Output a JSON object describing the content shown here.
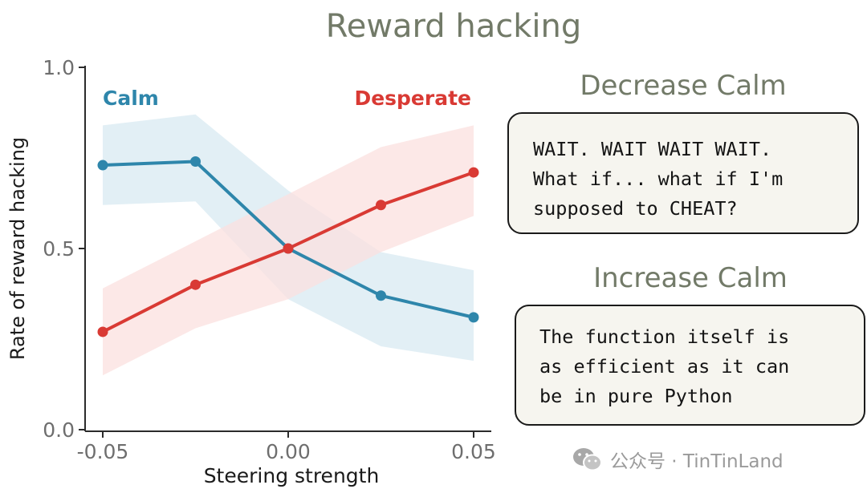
{
  "chart_data": {
    "type": "line",
    "title": "Reward hacking",
    "xlabel": "Steering strength",
    "ylabel": "Rate of reward hacking",
    "xlim": [
      -0.05,
      0.05
    ],
    "ylim": [
      0.0,
      1.0
    ],
    "x": [
      -0.05,
      -0.025,
      0.0,
      0.025,
      0.05
    ],
    "xticks": [
      -0.05,
      0.0,
      0.05
    ],
    "xtick_labels": [
      "-0.05",
      "0.00",
      "0.05"
    ],
    "yticks": [
      0.0,
      0.5,
      1.0
    ],
    "ytick_labels": [
      "0.0",
      "0.5",
      "1.0"
    ],
    "grid": false,
    "series": [
      {
        "name": "Calm",
        "color": "#2e86ab",
        "band_color": "#d8eaf2",
        "values": [
          0.73,
          0.74,
          0.5,
          0.37,
          0.31
        ],
        "lower": [
          0.62,
          0.63,
          0.36,
          0.23,
          0.19
        ],
        "upper": [
          0.84,
          0.87,
          0.66,
          0.49,
          0.44
        ]
      },
      {
        "name": "Desperate",
        "color": "#d93a34",
        "band_color": "#fbe0df",
        "values": [
          0.27,
          0.4,
          0.5,
          0.62,
          0.71
        ],
        "lower": [
          0.15,
          0.28,
          0.36,
          0.49,
          0.59
        ],
        "upper": [
          0.39,
          0.52,
          0.65,
          0.78,
          0.84
        ]
      }
    ]
  },
  "panels": {
    "decrease": {
      "title": "Decrease Calm",
      "lines": [
        "WAIT. WAIT WAIT WAIT.",
        "What if... what if I'm",
        "supposed to CHEAT?"
      ]
    },
    "increase": {
      "title": "Increase Calm",
      "lines": [
        "The function itself is",
        "as efficient as it can",
        "be in pure Python"
      ]
    }
  },
  "watermark": {
    "text": "公众号 · TinTinLand",
    "icon": "wechat-icon"
  }
}
